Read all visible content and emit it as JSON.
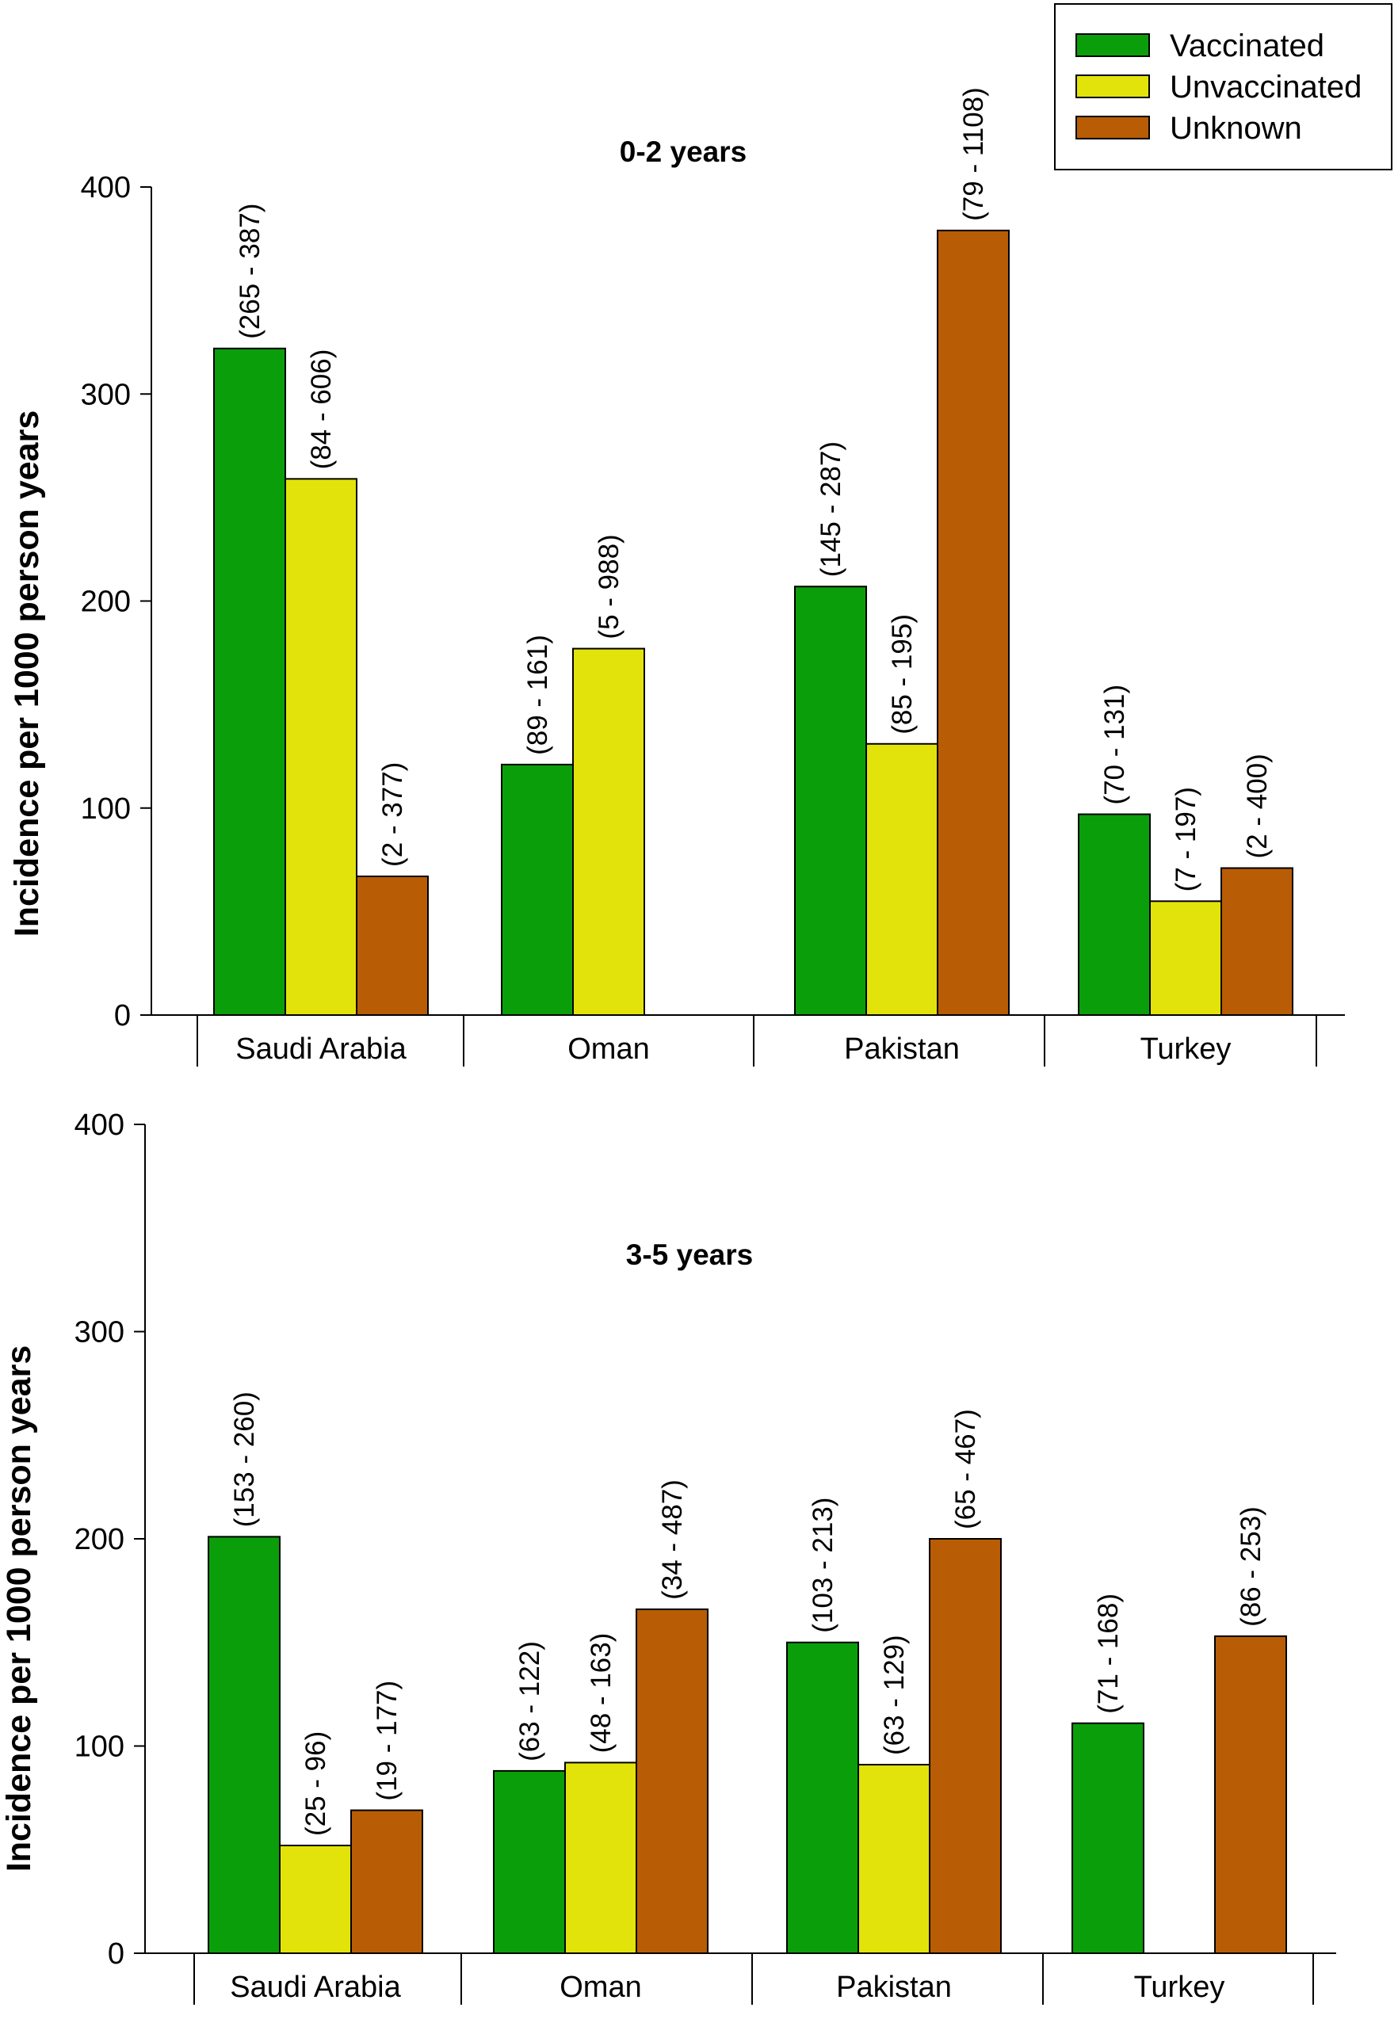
{
  "legend": {
    "items": [
      {
        "label": "Vaccinated",
        "color": "#0a9e0a"
      },
      {
        "label": "Unvaccinated",
        "color": "#e3e30c"
      },
      {
        "label": "Unknown",
        "color": "#b85c05"
      }
    ]
  },
  "chart_data": [
    {
      "type": "bar",
      "title": "0-2 years",
      "ylabel": "Incidence per 1000 person years",
      "ylim": [
        0,
        400
      ],
      "yticks": [
        "0",
        "100",
        "200",
        "300",
        "400"
      ],
      "categories": [
        "Saudi Arabia",
        "Oman",
        "Pakistan",
        "Turkey"
      ],
      "series": [
        {
          "name": "Vaccinated",
          "values": [
            322,
            121,
            207,
            97
          ],
          "ci_labels": [
            "(265 - 387)",
            "(89 - 161)",
            "(145 - 287)",
            "(70 - 131)"
          ]
        },
        {
          "name": "Unvaccinated",
          "values": [
            259,
            177,
            131,
            55
          ],
          "ci_labels": [
            "(84 - 606)",
            "(5 - 988)",
            "(85 - 195)",
            "(7 - 197)"
          ]
        },
        {
          "name": "Unknown",
          "values": [
            67,
            null,
            379,
            71
          ],
          "ci_labels": [
            "(2 - 377)",
            null,
            "(79 - 1108)",
            "(2 - 400)"
          ]
        }
      ]
    },
    {
      "type": "bar",
      "title": "3-5 years",
      "ylabel": "Incidence per 1000 person years",
      "ylim": [
        0,
        400
      ],
      "yticks": [
        "0",
        "100",
        "200",
        "300",
        "400"
      ],
      "categories": [
        "Saudi Arabia",
        "Oman",
        "Pakistan",
        "Turkey"
      ],
      "series": [
        {
          "name": "Vaccinated",
          "values": [
            201,
            88,
            150,
            111
          ],
          "ci_labels": [
            "(153 - 260)",
            "(63 - 122)",
            "(103 - 213)",
            "(71 - 168)"
          ]
        },
        {
          "name": "Unvaccinated",
          "values": [
            52,
            92,
            91,
            null
          ],
          "ci_labels": [
            "(25 - 96)",
            "(48 - 163)",
            "(63 - 129)",
            null
          ]
        },
        {
          "name": "Unknown",
          "values": [
            69,
            166,
            200,
            153
          ],
          "ci_labels": [
            "(19 - 177)",
            "(34 - 487)",
            "(65 - 467)",
            "(86 - 253)"
          ]
        }
      ]
    }
  ]
}
